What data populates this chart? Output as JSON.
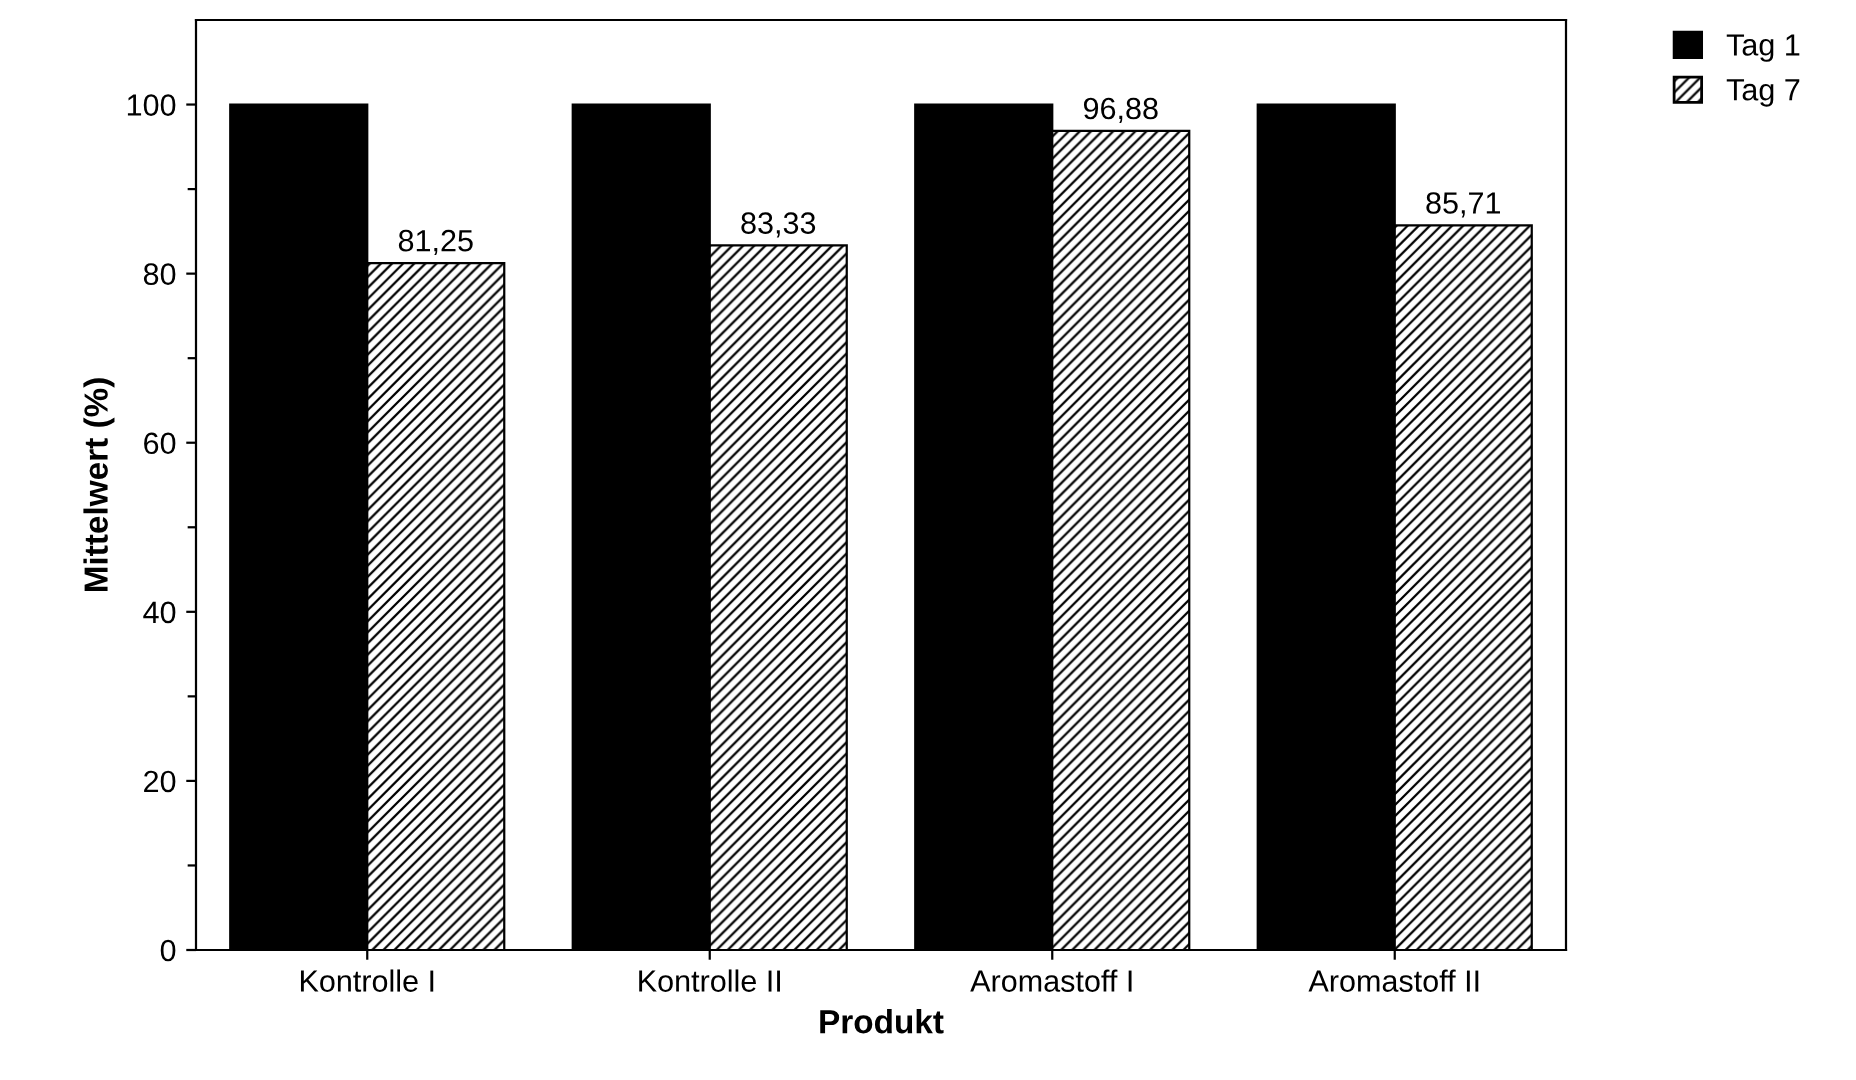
{
  "chart_data": {
    "type": "bar",
    "xlabel": "Produkt",
    "ylabel": "Mittelwert (%)",
    "categories": [
      "Kontrolle I",
      "Kontrolle II",
      "Aromastoff I",
      "Aromastoff II"
    ],
    "series": [
      {
        "name": "Tag 1",
        "color": "#000000",
        "values": [
          100,
          100,
          100,
          100
        ]
      },
      {
        "name": "Tag 7",
        "color": "#000000",
        "values": [
          81.25,
          83.33,
          96.88,
          85.71
        ],
        "value_labels": [
          "81,25",
          "83,33",
          "96,88",
          "85,71"
        ]
      }
    ],
    "ylim": [
      0,
      110
    ],
    "yticks": [
      0,
      {
        "value": 10,
        "label": null
      },
      20,
      {
        "value": 30,
        "label": null
      },
      40,
      {
        "value": 50,
        "label": null
      },
      60,
      {
        "value": 70,
        "label": null
      },
      80,
      {
        "value": 90,
        "label": null
      },
      100
    ],
    "grid": false,
    "legend": "top right"
  }
}
